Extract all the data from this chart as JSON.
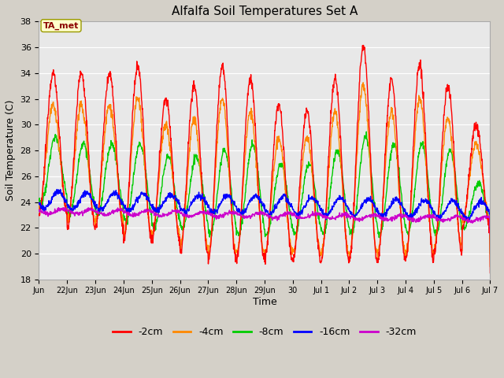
{
  "title": "Alfalfa Soil Temperatures Set A",
  "xlabel": "Time",
  "ylabel": "Soil Temperature (C)",
  "ylim": [
    18,
    38
  ],
  "fig_bg_color": "#d4d0c8",
  "plot_bg_color": "#e8e8e8",
  "annotation_text": "TA_met",
  "annotation_color": "#8b0000",
  "annotation_bg": "#ffffcc",
  "colors": {
    "-2cm": "#ff0000",
    "-4cm": "#ff8800",
    "-8cm": "#00cc00",
    "-16cm": "#0000ff",
    "-32cm": "#cc00cc"
  },
  "legend_labels": [
    "-2cm",
    "-4cm",
    "-8cm",
    "-16cm",
    "-32cm"
  ],
  "x_tick_labels": [
    "Jun",
    "22Jun",
    "23Jun",
    "24Jun",
    "25Jun",
    "26Jun",
    "27Jun",
    "28Jun",
    "29Jun",
    "30",
    "Jul 1",
    "Jul 2",
    "Jul 3",
    "Jul 4",
    "Jul 5",
    "Jul 6",
    "Jul 7"
  ],
  "n_days": 16,
  "pts_per_day": 96
}
